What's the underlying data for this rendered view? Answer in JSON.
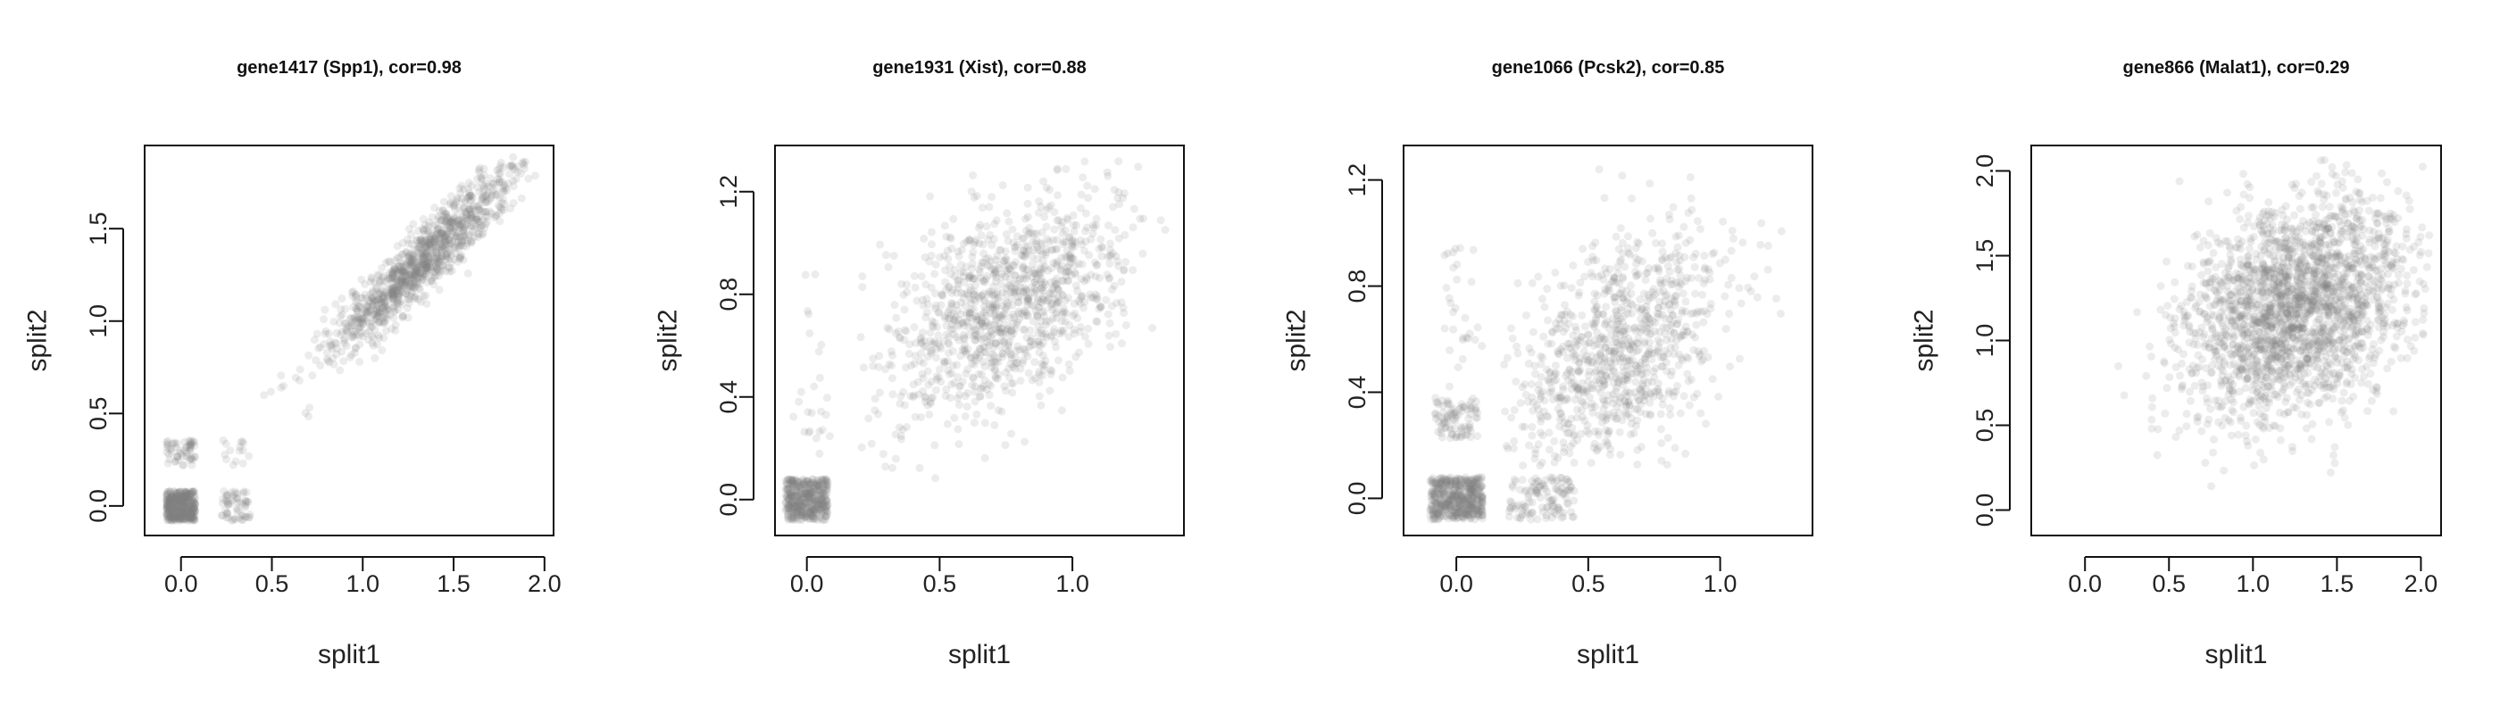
{
  "chart_data": [
    {
      "type": "scatter",
      "title": "gene1417 (Spp1), cor=0.98",
      "xlabel": "split1",
      "ylabel": "split2",
      "xlim": [
        -0.2,
        2.05
      ],
      "ylim": [
        -0.16,
        1.95
      ],
      "xticks": [
        0.0,
        0.5,
        1.0,
        1.5,
        2.0
      ],
      "xtick_labels": [
        "0.0",
        "0.5",
        "1.0",
        "1.5",
        "2.0"
      ],
      "yticks": [
        0.0,
        0.5,
        1.0,
        1.5
      ],
      "ytick_labels": [
        "0.0",
        "0.5",
        "1.0",
        "1.5"
      ],
      "point_color": "#808080",
      "point_alpha": 0.15,
      "clusters": [
        {
          "kind": "box",
          "x": [
            -0.08,
            0.08
          ],
          "y": [
            -0.08,
            0.08
          ],
          "n": 400
        },
        {
          "kind": "box",
          "x": [
            -0.08,
            0.08
          ],
          "y": [
            0.22,
            0.36
          ],
          "n": 60
        },
        {
          "kind": "box",
          "x": [
            0.22,
            0.38
          ],
          "y": [
            -0.08,
            0.08
          ],
          "n": 60
        },
        {
          "kind": "box",
          "x": [
            0.22,
            0.38
          ],
          "y": [
            0.22,
            0.36
          ],
          "n": 15
        },
        {
          "kind": "normal",
          "mx": 1.33,
          "my": 1.33,
          "sx": 0.26,
          "sy": 0.26,
          "rho": 0.93,
          "n": 1100,
          "xr": [
            0.1,
            1.95
          ],
          "yr": [
            0.05,
            1.9
          ]
        }
      ]
    },
    {
      "type": "scatter",
      "title": "gene1931 (Xist), cor=0.88",
      "xlabel": "split1",
      "ylabel": "split2",
      "xlim": [
        -0.12,
        1.42
      ],
      "ylim": [
        -0.14,
        1.38
      ],
      "xticks": [
        0.0,
        0.5,
        1.0
      ],
      "xtick_labels": [
        "0.0",
        "0.5",
        "1.0"
      ],
      "yticks": [
        0.0,
        0.4,
        0.8,
        1.2
      ],
      "ytick_labels": [
        "0.0",
        "0.4",
        "0.8",
        "1.2"
      ],
      "point_color": "#808080",
      "point_alpha": 0.15,
      "clusters": [
        {
          "kind": "box",
          "x": [
            -0.08,
            0.08
          ],
          "y": [
            -0.08,
            0.08
          ],
          "n": 450
        },
        {
          "kind": "normal",
          "mx": 0.01,
          "my": 0.45,
          "sx": 0.04,
          "sy": 0.25,
          "rho": 0.0,
          "n": 25,
          "xr": [
            -0.06,
            0.1
          ],
          "yr": [
            0.15,
            1.05
          ]
        },
        {
          "kind": "normal",
          "mx": 0.75,
          "my": 0.75,
          "sx": 0.22,
          "sy": 0.22,
          "rho": 0.45,
          "n": 1100,
          "xr": [
            0.2,
            1.35
          ],
          "yr": [
            -0.1,
            1.35
          ]
        }
      ]
    },
    {
      "type": "scatter",
      "title": "gene1066 (Pcsk2), cor=0.85",
      "xlabel": "split1",
      "ylabel": "split2",
      "xlim": [
        -0.2,
        1.35
      ],
      "ylim": [
        -0.14,
        1.33
      ],
      "xticks": [
        0.0,
        0.5,
        1.0
      ],
      "xtick_labels": [
        "0.0",
        "0.5",
        "1.0"
      ],
      "yticks": [
        0.0,
        0.4,
        0.8,
        1.2
      ],
      "ytick_labels": [
        "0.0",
        "0.4",
        "0.8",
        "1.2"
      ],
      "point_color": "#808080",
      "point_alpha": 0.15,
      "clusters": [
        {
          "kind": "box",
          "x": [
            -0.1,
            0.1
          ],
          "y": [
            -0.08,
            0.08
          ],
          "n": 500
        },
        {
          "kind": "box",
          "x": [
            -0.08,
            0.08
          ],
          "y": [
            0.22,
            0.38
          ],
          "n": 90
        },
        {
          "kind": "box",
          "x": [
            0.2,
            0.45
          ],
          "y": [
            -0.08,
            0.08
          ],
          "n": 120
        },
        {
          "kind": "normal",
          "mx": 0.01,
          "my": 0.65,
          "sx": 0.04,
          "sy": 0.2,
          "rho": 0.0,
          "n": 30,
          "xr": [
            -0.08,
            0.1
          ],
          "yr": [
            0.42,
            1.0
          ]
        },
        {
          "kind": "normal",
          "mx": 0.6,
          "my": 0.55,
          "sx": 0.22,
          "sy": 0.24,
          "rho": 0.45,
          "n": 900,
          "xr": [
            0.18,
            1.25
          ],
          "yr": [
            0.12,
            1.3
          ]
        }
      ]
    },
    {
      "type": "scatter",
      "title": "gene866 (Malat1), cor=0.29",
      "xlabel": "split1",
      "ylabel": "split2",
      "xlim": [
        -0.32,
        2.12
      ],
      "ylim": [
        -0.15,
        2.15
      ],
      "xticks": [
        0.0,
        0.5,
        1.0,
        1.5,
        2.0
      ],
      "xtick_labels": [
        "0.0",
        "0.5",
        "1.0",
        "1.5",
        "2.0"
      ],
      "yticks": [
        0.0,
        0.5,
        1.0,
        1.5,
        2.0
      ],
      "ytick_labels": [
        "0.0",
        "0.5",
        "1.0",
        "1.5",
        "2.0"
      ],
      "point_color": "#808080",
      "point_alpha": 0.15,
      "clusters": [
        {
          "kind": "normal",
          "mx": 1.25,
          "my": 1.2,
          "sx": 0.33,
          "sy": 0.33,
          "rho": 0.3,
          "n": 2200,
          "xr": [
            -0.25,
            2.05
          ],
          "yr": [
            -0.1,
            2.1
          ]
        }
      ]
    }
  ]
}
